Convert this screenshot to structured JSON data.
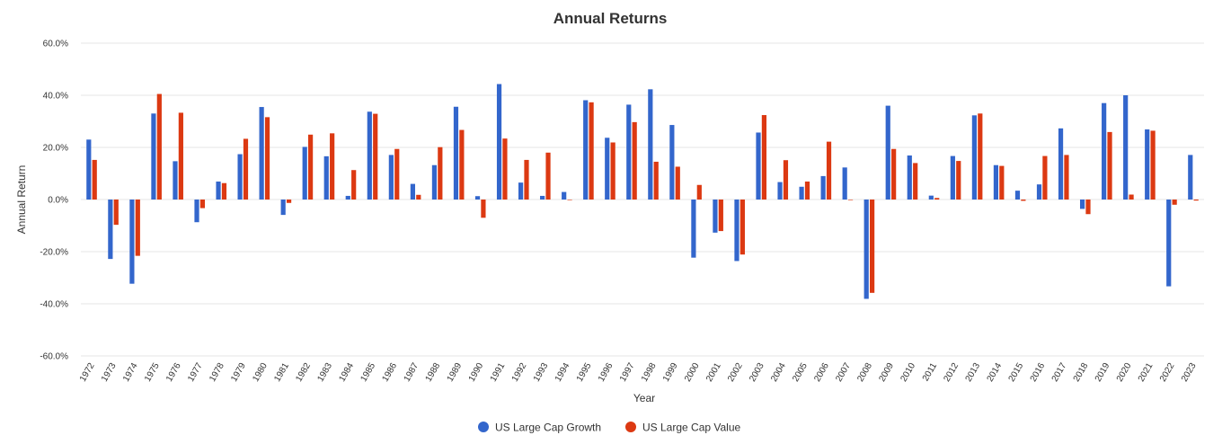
{
  "chart_data": {
    "type": "bar",
    "title": "Annual Returns",
    "xlabel": "Year",
    "ylabel": "Annual Return",
    "ylim": [
      -60,
      60
    ],
    "y_ticks": [
      "60.0%",
      "40.0%",
      "20.0%",
      "0.0%",
      "-20.0%",
      "-40.0%",
      "-60.0%"
    ],
    "y_tick_values": [
      60,
      40,
      20,
      0,
      -20,
      -40,
      -60
    ],
    "grid": true,
    "legend_position": "bottom",
    "categories": [
      "1972",
      "1973",
      "1974",
      "1975",
      "1976",
      "1977",
      "1978",
      "1979",
      "1980",
      "1981",
      "1982",
      "1983",
      "1984",
      "1985",
      "1986",
      "1987",
      "1988",
      "1989",
      "1990",
      "1991",
      "1992",
      "1993",
      "1994",
      "1995",
      "1996",
      "1997",
      "1998",
      "1999",
      "2000",
      "2001",
      "2002",
      "2003",
      "2004",
      "2005",
      "2006",
      "2007",
      "2008",
      "2009",
      "2010",
      "2011",
      "2012",
      "2013",
      "2014",
      "2015",
      "2016",
      "2017",
      "2018",
      "2019",
      "2020",
      "2021",
      "2022",
      "2023"
    ],
    "series": [
      {
        "name": "US Large Cap Growth",
        "color": "#3366cc",
        "values": [
          23.0,
          -22.8,
          -32.3,
          33.0,
          14.7,
          -8.7,
          6.9,
          17.4,
          35.5,
          -5.9,
          20.2,
          16.6,
          1.4,
          33.7,
          17.1,
          6.0,
          13.2,
          35.6,
          1.3,
          44.3,
          6.5,
          1.4,
          2.9,
          38.1,
          23.7,
          36.4,
          42.3,
          28.6,
          -22.3,
          -12.7,
          -23.6,
          25.7,
          6.7,
          4.9,
          9.0,
          12.3,
          -38.1,
          36.0,
          16.9,
          1.5,
          16.7,
          32.3,
          13.2,
          3.4,
          5.8,
          27.3,
          -3.6,
          37.0,
          40.0,
          26.9,
          -33.3,
          17.1
        ]
      },
      {
        "name": "US Large Cap Value",
        "color": "#dc3912",
        "values": [
          15.2,
          -9.7,
          -21.6,
          40.5,
          33.3,
          -3.3,
          6.3,
          23.3,
          31.6,
          -1.3,
          24.9,
          25.4,
          11.3,
          32.9,
          19.4,
          1.8,
          20.1,
          26.7,
          -7.0,
          23.4,
          15.2,
          18.0,
          0.0,
          37.3,
          21.9,
          29.7,
          14.5,
          12.6,
          5.6,
          -12.1,
          -21.1,
          32.4,
          15.1,
          6.9,
          22.2,
          0.0,
          -35.8,
          19.4,
          14.0,
          0.6,
          14.8,
          33.0,
          12.9,
          -0.5,
          16.7,
          17.1,
          -5.6,
          25.9,
          1.9,
          26.4,
          -2.0,
          -0.4
        ]
      }
    ]
  }
}
